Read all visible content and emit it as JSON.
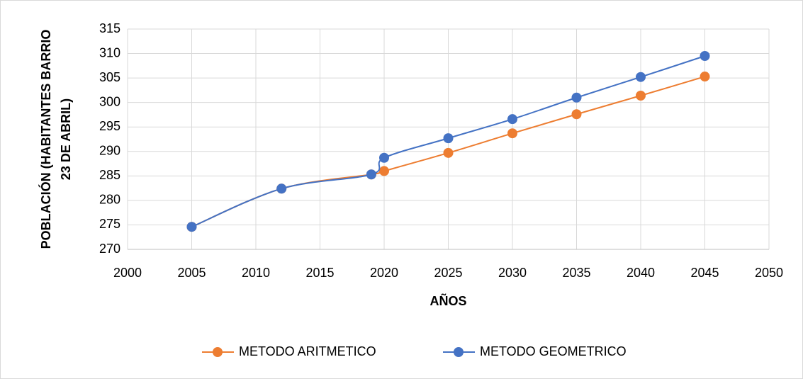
{
  "chart_data": {
    "type": "scatter",
    "xlabel": "AÑOS",
    "ylabel": [
      "POBLACIÓN (HABITANTES BARRIO",
      "23 DE ABRIL)"
    ],
    "x": [
      2005,
      2012,
      2019,
      2020,
      2025,
      2030,
      2035,
      2040,
      2045
    ],
    "series": [
      {
        "name": "METODO ARITMETICO",
        "color": "#ED7D31",
        "values": [
          274.6,
          282.4,
          285.3,
          286.0,
          289.7,
          293.7,
          297.6,
          301.4,
          305.3
        ]
      },
      {
        "name": "METODO GEOMETRICO",
        "color": "#4472C4",
        "values": [
          274.6,
          282.4,
          285.3,
          288.7,
          292.7,
          296.6,
          301.0,
          305.2,
          309.5
        ]
      }
    ],
    "xlim": [
      2000,
      2050
    ],
    "xticks": [
      2000,
      2005,
      2010,
      2015,
      2020,
      2025,
      2030,
      2035,
      2040,
      2045,
      2050
    ],
    "ylim": [
      270,
      315
    ],
    "yticks": [
      270,
      275,
      280,
      285,
      290,
      295,
      300,
      305,
      310,
      315
    ],
    "grid": true,
    "smooth": true,
    "legend": "bottom"
  }
}
